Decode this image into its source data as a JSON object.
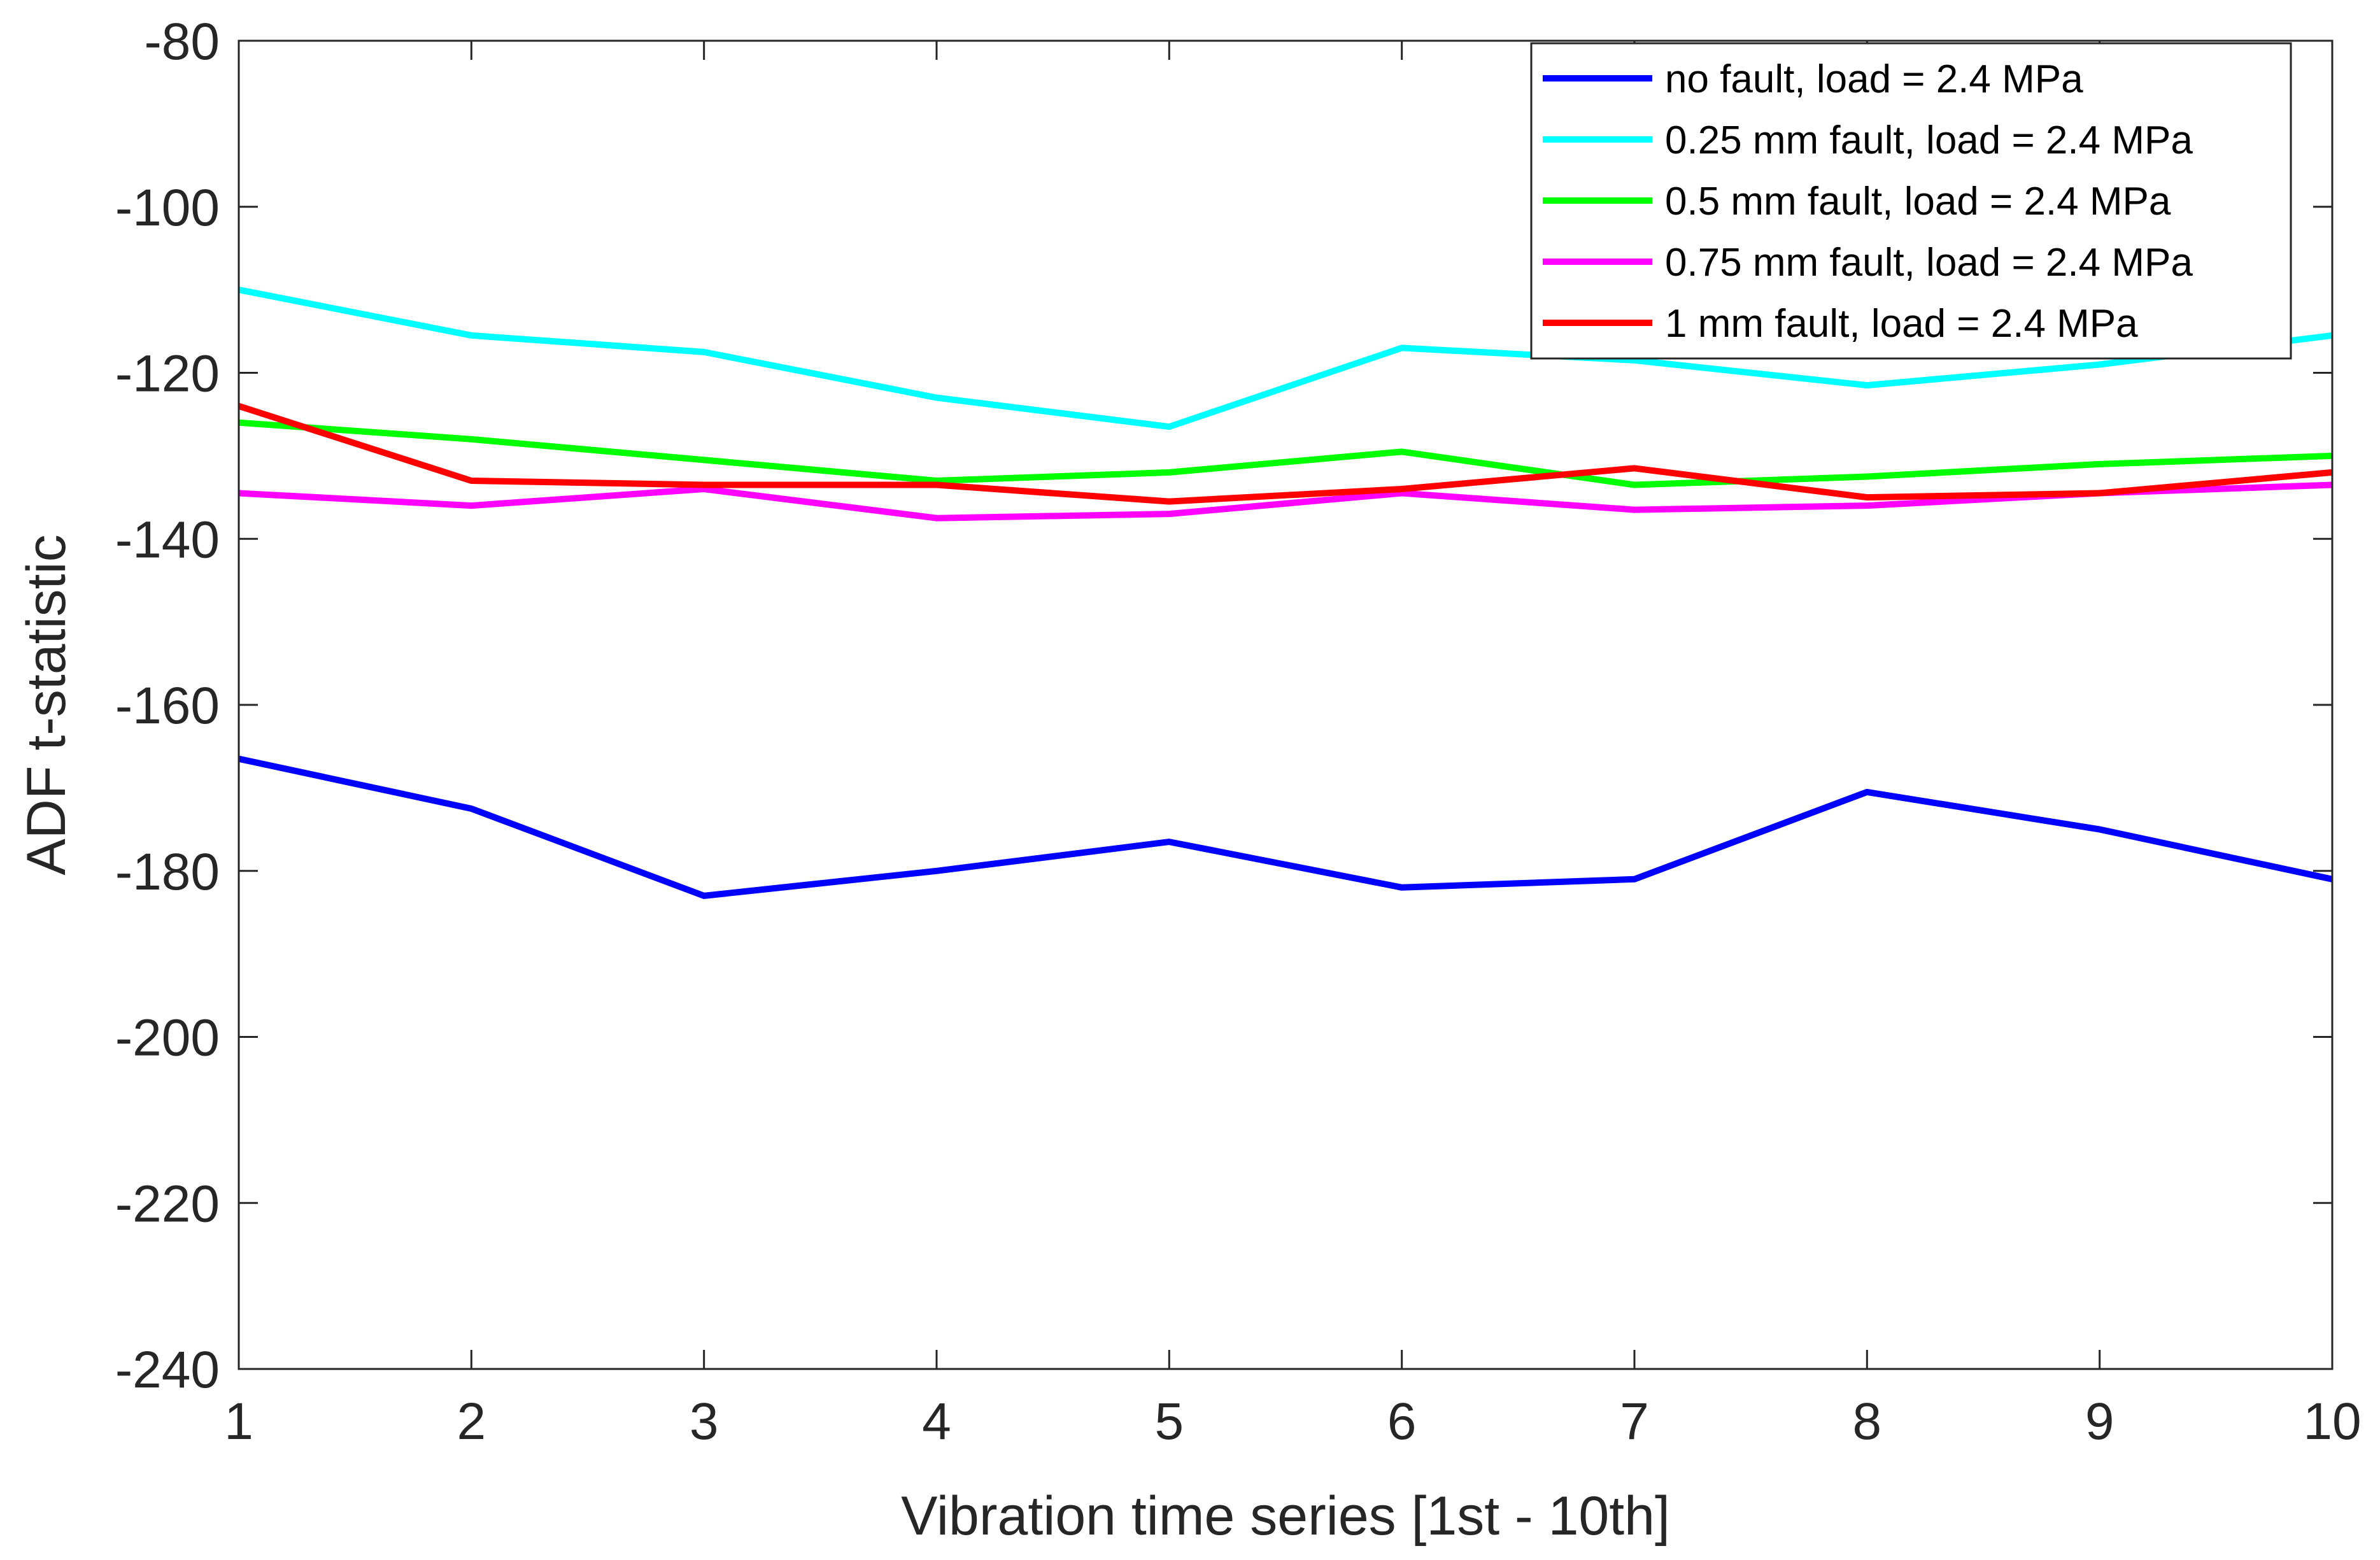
{
  "chart_data": {
    "type": "line",
    "title": "",
    "xlabel": "Vibration time series [1st - 10th]",
    "ylabel": "ADF t-statistic",
    "x": [
      1,
      2,
      3,
      4,
      5,
      6,
      7,
      8,
      9,
      10
    ],
    "xlim": [
      1,
      10
    ],
    "ylim": [
      -240,
      -80
    ],
    "xticks": [
      "1",
      "2",
      "3",
      "4",
      "5",
      "6",
      "7",
      "8",
      "9",
      "10"
    ],
    "yticks": [
      "-80",
      "-100",
      "-120",
      "-140",
      "-160",
      "-180",
      "-200",
      "-220",
      "-240"
    ],
    "ytick_values": [
      -80,
      -100,
      -120,
      -140,
      -160,
      -180,
      -200,
      -220,
      -240
    ],
    "grid": false,
    "legend_position": "top-right",
    "series": [
      {
        "name": "no fault, load = 2.4 MPa",
        "color": "#0000ff",
        "values": [
          -166.5,
          -172.5,
          -183,
          -180,
          -176.5,
          -182,
          -181,
          -170.5,
          -175,
          -181
        ]
      },
      {
        "name": "0.25 mm fault, load = 2.4 MPa",
        "color": "#00ffff",
        "values": [
          -110,
          -115.5,
          -117.5,
          -123,
          -126.5,
          -117,
          -118.5,
          -121.5,
          -119,
          -115.5
        ]
      },
      {
        "name": "0.5 mm fault, load = 2.4 MPa",
        "color": "#00ff00",
        "values": [
          -126,
          -128,
          -130.5,
          -133,
          -132,
          -129.5,
          -133.5,
          -132.5,
          -131,
          -130
        ]
      },
      {
        "name": "0.75 mm fault, load = 2.4 MPa",
        "color": "#ff00ff",
        "values": [
          -134.5,
          -136,
          -134,
          -137.5,
          -137,
          -134.5,
          -136.5,
          -136,
          -134.5,
          -133.5
        ]
      },
      {
        "name": "1 mm fault, load = 2.4 MPa",
        "color": "#ff0000",
        "values": [
          -124,
          -133,
          -133.5,
          -133.5,
          -135.5,
          -134,
          -131.5,
          -135,
          -134.5,
          -132
        ]
      }
    ]
  }
}
